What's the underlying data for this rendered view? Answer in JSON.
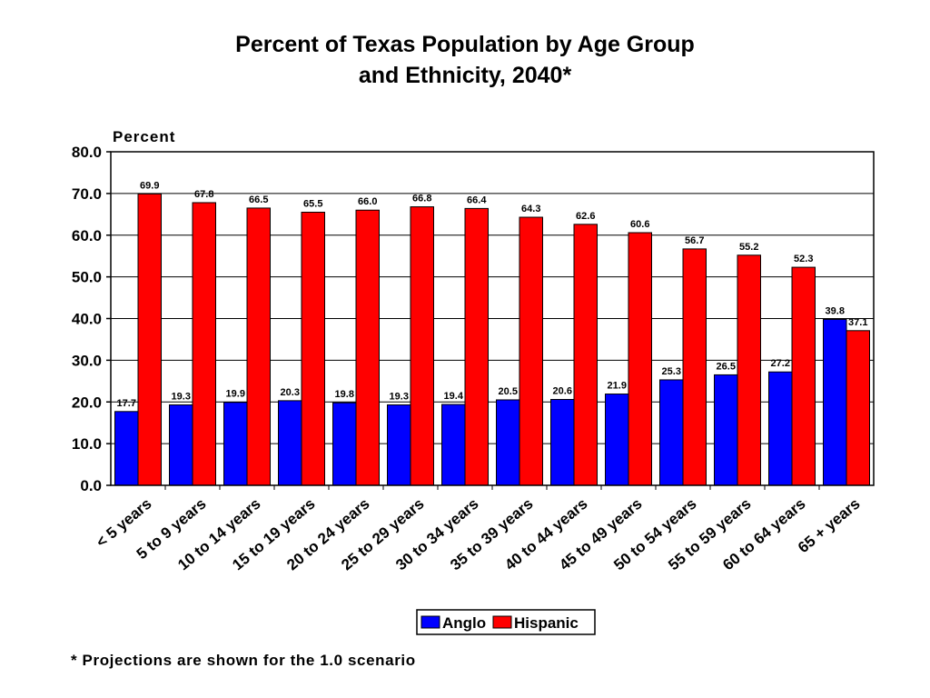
{
  "chart_data": {
    "type": "bar",
    "title_lines": [
      "Percent of Texas Population by Age Group",
      "and Ethnicity, 2040*"
    ],
    "ylabel": "Percent",
    "xlabel": "",
    "ylim": [
      0,
      80
    ],
    "yticks": [
      0,
      10,
      20,
      30,
      40,
      50,
      60,
      70,
      80
    ],
    "ytick_labels": [
      "0.0",
      "10.0",
      "20.0",
      "30.0",
      "40.0",
      "50.0",
      "60.0",
      "70.0",
      "80.0"
    ],
    "grid": true,
    "legend_position": "bottom-center",
    "categories": [
      "< 5 years",
      "5 to 9 years",
      "10 to 14 years",
      "15 to 19 years",
      "20 to 24 years",
      "25 to 29 years",
      "30 to 34 years",
      "35 to 39 years",
      "40 to 44 years",
      "45 to 49 years",
      "50 to 54 years",
      "55 to 59 years",
      "60 to 64 years",
      "65 + years"
    ],
    "series": [
      {
        "name": "Anglo",
        "color": "#0000ff",
        "values": [
          17.7,
          19.3,
          19.9,
          20.3,
          19.8,
          19.3,
          19.4,
          20.5,
          20.6,
          21.9,
          25.3,
          26.5,
          27.2,
          39.8
        ]
      },
      {
        "name": "Hispanic",
        "color": "#ff0000",
        "values": [
          69.9,
          67.8,
          66.5,
          65.5,
          66.0,
          66.8,
          66.4,
          64.3,
          62.6,
          60.6,
          56.7,
          55.2,
          52.3,
          37.1
        ]
      }
    ],
    "footnote": "* Projections are shown for the 1.0 scenario"
  }
}
